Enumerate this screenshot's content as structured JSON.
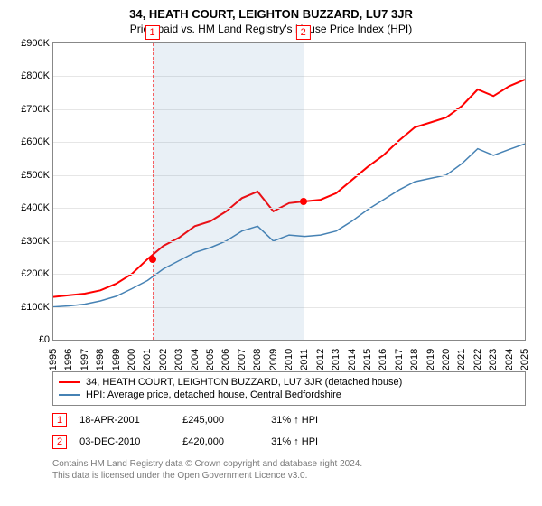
{
  "title": "34, HEATH COURT, LEIGHTON BUZZARD, LU7 3JR",
  "subtitle": "Price paid vs. HM Land Registry's House Price Index (HPI)",
  "chart": {
    "type": "line",
    "background_color": "#ffffff",
    "grid_color": "#e6e6e6",
    "border_color": "#888888",
    "x_years": [
      1995,
      1996,
      1997,
      1998,
      1999,
      2000,
      2001,
      2002,
      2003,
      2004,
      2005,
      2006,
      2007,
      2008,
      2009,
      2010,
      2011,
      2012,
      2013,
      2014,
      2015,
      2016,
      2017,
      2018,
      2019,
      2020,
      2021,
      2022,
      2023,
      2024,
      2025
    ],
    "xmin": 1995,
    "xmax": 2025,
    "ymin": 0,
    "ymax": 900,
    "y_ticks": [
      0,
      100,
      200,
      300,
      400,
      500,
      600,
      700,
      800,
      900
    ],
    "y_prefix": "£",
    "y_suffix": "K",
    "shade_start": 2001.3,
    "shade_end": 2010.9,
    "series": {
      "property": {
        "color": "#ff0000",
        "width": 2,
        "points": [
          [
            1995,
            130
          ],
          [
            1996,
            135
          ],
          [
            1997,
            140
          ],
          [
            1998,
            150
          ],
          [
            1999,
            170
          ],
          [
            2000,
            200
          ],
          [
            2001,
            245
          ],
          [
            2002,
            285
          ],
          [
            2003,
            310
          ],
          [
            2004,
            345
          ],
          [
            2005,
            360
          ],
          [
            2006,
            390
          ],
          [
            2007,
            430
          ],
          [
            2008,
            450
          ],
          [
            2009,
            390
          ],
          [
            2010,
            415
          ],
          [
            2011,
            420
          ],
          [
            2012,
            425
          ],
          [
            2013,
            445
          ],
          [
            2014,
            485
          ],
          [
            2015,
            525
          ],
          [
            2016,
            560
          ],
          [
            2017,
            605
          ],
          [
            2018,
            645
          ],
          [
            2019,
            660
          ],
          [
            2020,
            675
          ],
          [
            2021,
            710
          ],
          [
            2022,
            760
          ],
          [
            2023,
            740
          ],
          [
            2024,
            770
          ],
          [
            2025,
            790
          ]
        ]
      },
      "hpi": {
        "color": "#4682b4",
        "width": 1.5,
        "points": [
          [
            1995,
            100
          ],
          [
            1996,
            103
          ],
          [
            1997,
            108
          ],
          [
            1998,
            118
          ],
          [
            1999,
            132
          ],
          [
            2000,
            155
          ],
          [
            2001,
            180
          ],
          [
            2002,
            215
          ],
          [
            2003,
            240
          ],
          [
            2004,
            265
          ],
          [
            2005,
            280
          ],
          [
            2006,
            300
          ],
          [
            2007,
            330
          ],
          [
            2008,
            345
          ],
          [
            2009,
            300
          ],
          [
            2010,
            318
          ],
          [
            2011,
            314
          ],
          [
            2012,
            318
          ],
          [
            2013,
            330
          ],
          [
            2014,
            360
          ],
          [
            2015,
            395
          ],
          [
            2016,
            425
          ],
          [
            2017,
            455
          ],
          [
            2018,
            480
          ],
          [
            2019,
            490
          ],
          [
            2020,
            500
          ],
          [
            2021,
            535
          ],
          [
            2022,
            580
          ],
          [
            2023,
            560
          ],
          [
            2024,
            578
          ],
          [
            2025,
            595
          ]
        ]
      }
    },
    "markers": [
      {
        "n": "1",
        "year": 2001.3,
        "value": 245
      },
      {
        "n": "2",
        "year": 2010.9,
        "value": 420
      }
    ],
    "dots": [
      {
        "year": 2001.3,
        "value": 245
      },
      {
        "year": 2010.9,
        "value": 420
      }
    ]
  },
  "legend": {
    "a": {
      "color": "#ff0000",
      "label": "34, HEATH COURT, LEIGHTON BUZZARD, LU7 3JR (detached house)"
    },
    "b": {
      "color": "#4682b4",
      "label": "HPI: Average price, detached house, Central Bedfordshire"
    }
  },
  "sales": [
    {
      "n": "1",
      "date": "18-APR-2001",
      "price": "£245,000",
      "pct": "31% ↑ HPI"
    },
    {
      "n": "2",
      "date": "03-DEC-2010",
      "price": "£420,000",
      "pct": "31% ↑ HPI"
    }
  ],
  "footer": {
    "l1": "Contains HM Land Registry data © Crown copyright and database right 2024.",
    "l2": "This data is licensed under the Open Government Licence v3.0."
  }
}
